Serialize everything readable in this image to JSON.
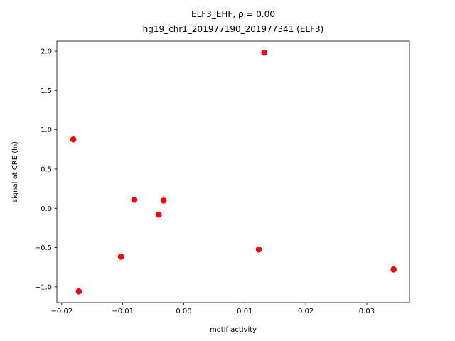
{
  "chart_data": {
    "type": "scatter",
    "title": "ELF3_EHF, ρ = 0.00",
    "subtitle": "hg19_chr1_201977190_201977341 (ELF3)",
    "x_label": "motif activity",
    "y_label": "signal at CRE (ln)",
    "color": "#ff0000",
    "x": [
      -0.0181,
      -0.0172,
      -0.0103,
      -0.0081,
      -0.0041,
      -0.0033,
      0.0132,
      0.0123,
      0.0344
    ],
    "values": [
      0.877,
      -1.058,
      -0.615,
      0.108,
      -0.081,
      0.099,
      1.98,
      -0.524,
      -0.778
    ],
    "xlim": [
      -0.0208,
      0.037
    ],
    "ylim": [
      -1.2,
      2.127
    ],
    "xticks": [
      {
        "value": -0.02,
        "label": "−0.02"
      },
      {
        "value": -0.01,
        "label": "−0.01"
      },
      {
        "value": 0,
        "label": "0.00"
      },
      0.01,
      0.02,
      0.03
    ],
    "yticks": [
      {
        "value": -1,
        "label": "−1.0"
      },
      {
        "value": -0.5,
        "label": "−0.5"
      },
      {
        "value": 0,
        "label": "0.0"
      },
      0.5,
      {
        "value": 1,
        "label": "1.0"
      },
      1.5,
      {
        "value": 2,
        "label": "2.0"
      }
    ],
    "grid": false
  }
}
